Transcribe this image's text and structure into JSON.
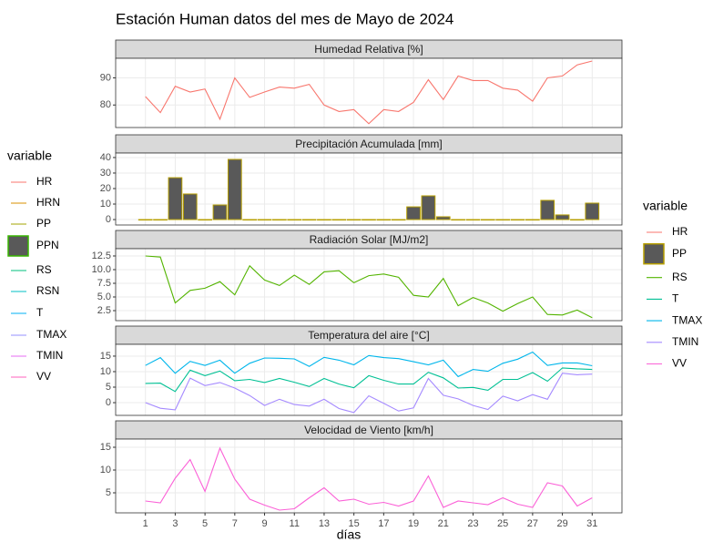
{
  "title": "Estación Human datos del mes de Mayo de 2024",
  "x_label": "días",
  "x": [
    1,
    2,
    3,
    4,
    5,
    6,
    7,
    8,
    9,
    10,
    11,
    12,
    13,
    14,
    15,
    16,
    17,
    18,
    19,
    20,
    21,
    22,
    23,
    24,
    25,
    26,
    27,
    28,
    29,
    30,
    31
  ],
  "xlim": [
    -1,
    33
  ],
  "xticks": [
    1,
    3,
    5,
    7,
    9,
    11,
    13,
    15,
    17,
    19,
    21,
    23,
    25,
    27,
    29,
    31
  ],
  "legend_left": {
    "title": "variable",
    "items": [
      {
        "name": "HR",
        "color": "#F8766D",
        "key": "line"
      },
      {
        "name": "HRN",
        "color": "#D89000",
        "key": "line"
      },
      {
        "name": "PP",
        "color": "#A3A500",
        "key": "line"
      },
      {
        "name": "PPN",
        "color": "#39B600",
        "key": "box"
      },
      {
        "name": "RS",
        "color": "#00BF7D",
        "key": "line"
      },
      {
        "name": "RSN",
        "color": "#00BFC4",
        "key": "line"
      },
      {
        "name": "T",
        "color": "#00B0F6",
        "key": "line"
      },
      {
        "name": "TMAX",
        "color": "#9590FF",
        "key": "line"
      },
      {
        "name": "TMIN",
        "color": "#E76BF3",
        "key": "line"
      },
      {
        "name": "VV",
        "color": "#FF62BC",
        "key": "line"
      }
    ]
  },
  "legend_right": {
    "title": "variable"
  },
  "chart_data": [
    {
      "type": "line",
      "title": "Humedad Relativa [%]",
      "ylim": [
        71.7,
        97.2
      ],
      "yticks": [
        80,
        90
      ],
      "grid": true,
      "series": [
        {
          "name": "HR",
          "color": "#F8766D",
          "values": [
            83.1,
            77.2,
            86.9,
            84.8,
            85.9,
            74.8,
            90,
            82.8,
            84.8,
            86.6,
            86.2,
            87.6,
            80,
            77.6,
            78.3,
            73.1,
            78.3,
            77.6,
            81,
            89.3,
            82,
            90.7,
            89,
            89,
            86.2,
            85.5,
            81.4,
            90,
            90.7,
            94.8,
            96.2
          ]
        }
      ]
    },
    {
      "type": "bar",
      "title": "Precipitación Acumulada [mm]",
      "ylim": [
        -3.5,
        42.9
      ],
      "yticks": [
        0,
        10,
        20,
        30,
        40
      ],
      "grid": true,
      "series": [
        {
          "name": "PP",
          "color": "#B79F00",
          "fill": "#595959",
          "values": [
            0,
            0,
            27,
            16.5,
            0,
            9.4,
            38.8,
            0,
            0,
            0,
            0,
            0,
            0,
            0,
            0,
            0,
            0,
            0,
            8.2,
            15.3,
            1.8,
            0,
            0,
            0,
            0,
            0,
            0,
            12.4,
            3,
            0,
            10.6
          ]
        }
      ]
    },
    {
      "type": "line",
      "title": "Radiación Solar [MJ/m2]",
      "ylim": [
        0.67,
        13.83
      ],
      "yticks": [
        {
          "value": 2.5,
          "label": "2.5"
        },
        {
          "value": 5,
          "label": "5.0"
        },
        {
          "value": 7.5,
          "label": "7.5"
        },
        {
          "value": 10,
          "label": "10.0"
        },
        {
          "value": 12.5,
          "label": "12.5"
        }
      ],
      "grid": true,
      "series": [
        {
          "name": "RS",
          "color": "#53B400",
          "values": [
            12.5,
            12.3,
            3.9,
            6.2,
            6.6,
            7.8,
            5.4,
            10.7,
            8.1,
            7.1,
            9,
            7.3,
            9.6,
            9.8,
            7.6,
            8.9,
            9.2,
            8.6,
            5.3,
            5,
            8.4,
            3.4,
            4.9,
            3.9,
            2.4,
            3.8,
            5,
            1.8,
            1.7,
            2.6,
            1.2
          ]
        }
      ]
    },
    {
      "type": "line",
      "title": "Temperatura del aire [°C]",
      "ylim": [
        -4.1,
        18.8
      ],
      "yticks": [
        0,
        5,
        10,
        15
      ],
      "grid": true,
      "series": [
        {
          "name": "T",
          "color": "#00C094",
          "values": [
            6.2,
            6.3,
            3.6,
            10.5,
            8.7,
            10.2,
            7.1,
            7.5,
            6.5,
            7.8,
            6.6,
            5.2,
            7.8,
            6,
            4.8,
            8.7,
            7.2,
            6,
            6,
            9.8,
            8,
            4.7,
            4.9,
            4,
            7.5,
            7.5,
            9.7,
            6.9,
            11.2,
            10.9,
            10.7
          ]
        },
        {
          "name": "TMAX",
          "color": "#00B6EB",
          "values": [
            12,
            14.5,
            9.5,
            13.3,
            12,
            13.7,
            9.5,
            12.7,
            14.4,
            14.3,
            14.1,
            11.7,
            14.6,
            13.7,
            12.2,
            15.2,
            14.5,
            14.2,
            13.2,
            12.2,
            13.7,
            8.4,
            10.7,
            10.1,
            12.7,
            14,
            16.3,
            12,
            12.8,
            12.8,
            11.9
          ]
        },
        {
          "name": "TMIN",
          "color": "#A58AFF",
          "values": [
            0,
            -1.8,
            -2.3,
            7.9,
            5.5,
            6.5,
            4.7,
            2.3,
            -0.9,
            1.1,
            -0.6,
            -1.1,
            1.1,
            -1.9,
            -3.2,
            2.2,
            -0.2,
            -2.7,
            -1.7,
            7.8,
            2.4,
            1.2,
            -0.9,
            -2.2,
            2.1,
            0.6,
            2.6,
            1.1,
            9.5,
            9,
            9.2
          ]
        }
      ]
    },
    {
      "type": "line",
      "title": "Velocidad de Viento [km/h]",
      "ylim": [
        0.6,
        16.8
      ],
      "yticks": [
        5,
        10,
        15
      ],
      "grid": true,
      "series": [
        {
          "name": "VV",
          "color": "#FB61D7",
          "values": [
            3.2,
            2.8,
            8.2,
            12.3,
            5.3,
            14.8,
            8,
            3.6,
            2.3,
            1.2,
            1.5,
            3.9,
            6.1,
            3.2,
            3.6,
            2.5,
            2.9,
            2.1,
            3.2,
            8.7,
            1.8,
            3.2,
            2.8,
            2.4,
            3.9,
            2.5,
            1.8,
            7.2,
            6.5,
            2.1,
            3.9
          ]
        }
      ]
    }
  ]
}
